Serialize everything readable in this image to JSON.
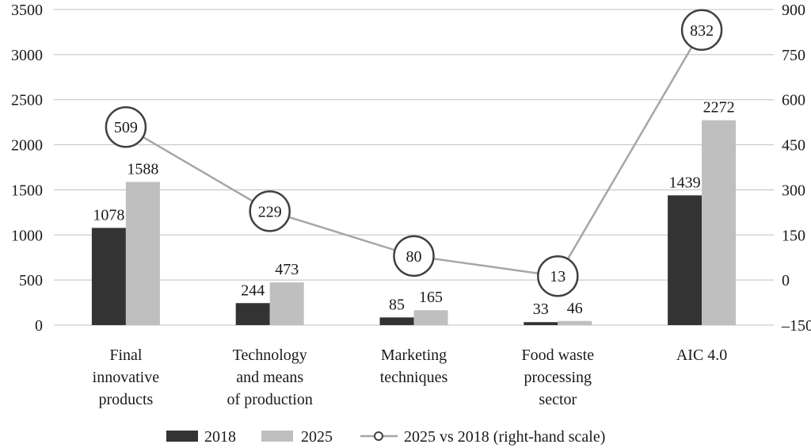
{
  "chart_data": {
    "type": "bar",
    "categories": [
      [
        "Final",
        "innovative",
        "products"
      ],
      [
        "Technology",
        "and means",
        "of production"
      ],
      [
        "Marketing",
        "techniques"
      ],
      [
        "Food waste",
        "processing",
        "sector"
      ],
      [
        "AIC 4.0"
      ]
    ],
    "series": [
      {
        "name": "2018",
        "type": "bar",
        "axis": "left",
        "color": "#333333",
        "values": [
          1078,
          244,
          85,
          33,
          1439
        ]
      },
      {
        "name": "2025",
        "type": "bar",
        "axis": "left",
        "color": "#bfbfbf",
        "values": [
          1588,
          473,
          165,
          46,
          2272
        ]
      },
      {
        "name": "2025 vs 2018 (right-hand scale)",
        "type": "line",
        "axis": "right",
        "color": "#a6a6a6",
        "values": [
          509,
          229,
          80,
          13,
          832
        ]
      }
    ],
    "left_axis": {
      "min": 0,
      "max": 3500,
      "ticks": [
        "0",
        "500",
        "1000",
        "1500",
        "2000",
        "2500",
        "3000",
        "3500"
      ]
    },
    "right_axis": {
      "min": -150,
      "max": 900,
      "ticks": [
        "–150",
        "0",
        "150",
        "300",
        "450",
        "600",
        "750",
        "900"
      ]
    },
    "grid": true,
    "legend_position": "bottom"
  }
}
